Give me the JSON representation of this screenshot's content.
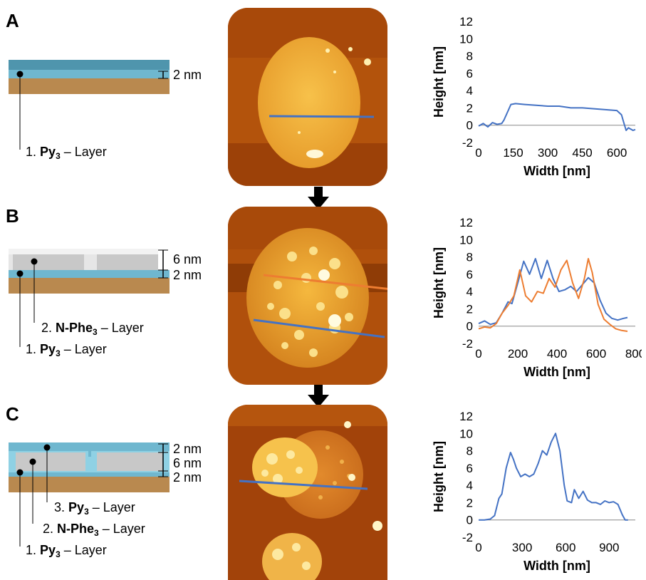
{
  "panels": [
    {
      "letter": "A",
      "layers": [
        {
          "index": "1.",
          "name": "Py",
          "sub": "3",
          "suffix": " – Layer"
        }
      ],
      "thickness": [
        "2 nm"
      ]
    },
    {
      "letter": "B",
      "layers": [
        {
          "index": "2.",
          "name": "N-Phe",
          "sub": "3",
          "suffix": " – Layer"
        },
        {
          "index": "1.",
          "name": "Py",
          "sub": "3",
          "suffix": " – Layer"
        }
      ],
      "thickness": [
        "6 nm",
        "2 nm"
      ]
    },
    {
      "letter": "C",
      "layers": [
        {
          "index": "3.",
          "name": "Py",
          "sub": "3",
          "suffix": " – Layer"
        },
        {
          "index": "2.",
          "name": "N-Phe",
          "sub": "3",
          "suffix": " – Layer"
        },
        {
          "index": "1.",
          "name": "Py",
          "sub": "3",
          "suffix": " – Layer"
        }
      ],
      "thickness": [
        "2 nm",
        "6 nm",
        "2 nm"
      ]
    }
  ],
  "colors": {
    "substrate": "#b9894f",
    "py_layer": "#6fb7cf",
    "py_layer_dark": "#4f95ad",
    "nphe_layer": "#cfcfcf",
    "series_blue": "#4472c4",
    "series_orange": "#ed7d31"
  },
  "chart_data": [
    {
      "type": "line",
      "xlabel": "Width [nm]",
      "ylabel": "Height [nm]",
      "xlim": [
        0,
        680
      ],
      "ylim": [
        -2,
        12
      ],
      "xticks": [
        0,
        150,
        300,
        450,
        600
      ],
      "yticks": [
        -2,
        0,
        2,
        4,
        6,
        8,
        10,
        12
      ],
      "series": [
        {
          "color": "#4472c4",
          "x": [
            0,
            20,
            40,
            60,
            80,
            100,
            110,
            130,
            140,
            160,
            200,
            250,
            300,
            350,
            400,
            450,
            500,
            550,
            600,
            620,
            630,
            640,
            650,
            670,
            680
          ],
          "y": [
            -0.1,
            0.2,
            -0.2,
            0.3,
            0.1,
            0.2,
            0.6,
            1.8,
            2.4,
            2.5,
            2.4,
            2.3,
            2.2,
            2.2,
            2.0,
            2.0,
            1.9,
            1.8,
            1.7,
            1.2,
            0.3,
            -0.6,
            -0.3,
            -0.6,
            -0.5
          ]
        }
      ]
    },
    {
      "type": "line",
      "xlabel": "Width [nm]",
      "ylabel": "Height [nm]",
      "xlim": [
        0,
        800
      ],
      "ylim": [
        -2,
        12
      ],
      "xticks": [
        0,
        200,
        400,
        600,
        800
      ],
      "yticks": [
        -2,
        0,
        2,
        4,
        6,
        8,
        10,
        12
      ],
      "series": [
        {
          "color": "#4472c4",
          "x": [
            0,
            30,
            60,
            90,
            120,
            150,
            170,
            200,
            230,
            260,
            290,
            320,
            350,
            380,
            410,
            440,
            470,
            500,
            530,
            560,
            590,
            620,
            650,
            680,
            710,
            740,
            760
          ],
          "y": [
            0.3,
            0.6,
            0.2,
            0.4,
            1.5,
            2.8,
            2.6,
            5.0,
            7.5,
            6.0,
            7.8,
            5.5,
            7.6,
            5.5,
            4.0,
            4.2,
            4.6,
            4.0,
            4.8,
            5.6,
            5.0,
            3.0,
            1.5,
            0.9,
            0.7,
            0.9,
            1.0
          ]
        },
        {
          "color": "#ed7d31",
          "x": [
            0,
            30,
            60,
            90,
            120,
            150,
            180,
            210,
            240,
            270,
            300,
            330,
            360,
            390,
            420,
            450,
            480,
            510,
            540,
            560,
            580,
            610,
            640,
            670,
            700,
            730,
            760
          ],
          "y": [
            -0.3,
            -0.1,
            -0.2,
            0.3,
            1.5,
            2.4,
            3.5,
            6.5,
            3.5,
            2.8,
            4.0,
            3.8,
            5.5,
            4.5,
            6.5,
            7.6,
            5.0,
            3.2,
            5.5,
            7.8,
            6.2,
            2.5,
            0.8,
            0.2,
            -0.3,
            -0.5,
            -0.6
          ]
        }
      ]
    },
    {
      "type": "line",
      "xlabel": "Width [nm]",
      "ylabel": "Height [nm]",
      "xlim": [
        0,
        1080
      ],
      "ylim": [
        -2,
        12
      ],
      "xticks": [
        0,
        300,
        600,
        900
      ],
      "yticks": [
        -2,
        0,
        2,
        4,
        6,
        8,
        10,
        12
      ],
      "series": [
        {
          "color": "#4472c4",
          "x": [
            0,
            40,
            80,
            110,
            140,
            160,
            190,
            220,
            240,
            260,
            290,
            320,
            350,
            380,
            410,
            440,
            470,
            500,
            530,
            560,
            590,
            610,
            640,
            660,
            690,
            720,
            750,
            780,
            810,
            840,
            870,
            900,
            930,
            960,
            990,
            1010,
            1030
          ],
          "y": [
            0,
            0,
            0.1,
            0.5,
            2.5,
            3.0,
            6.0,
            7.8,
            7.0,
            6.0,
            5.0,
            5.3,
            5.0,
            5.3,
            6.5,
            8.0,
            7.5,
            9.0,
            10.0,
            8.0,
            4.0,
            2.2,
            2.0,
            3.5,
            2.5,
            3.3,
            2.3,
            2.0,
            2.0,
            1.8,
            2.2,
            2.0,
            2.1,
            1.8,
            0.6,
            0.0,
            0.0
          ]
        }
      ]
    }
  ]
}
